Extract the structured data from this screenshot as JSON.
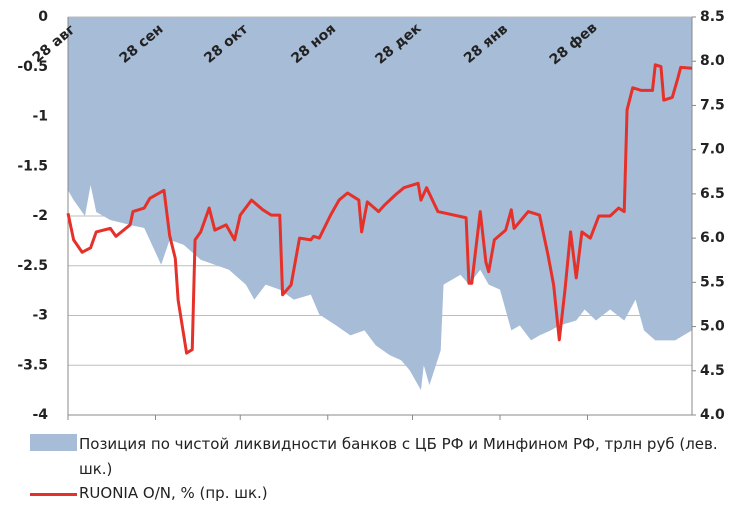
{
  "chart_data": {
    "type": "area-line",
    "xlim": [
      0,
      221
    ],
    "xticks": [
      {
        "value": 0,
        "label": "28 авг"
      },
      {
        "value": 31,
        "label": "28 сен"
      },
      {
        "value": 61,
        "label": "28 окт"
      },
      {
        "value": 92,
        "label": "28 ноя"
      },
      {
        "value": 122,
        "label": "28 дек"
      },
      {
        "value": 153,
        "label": "28 янв"
      },
      {
        "value": 184,
        "label": "28 фев"
      }
    ],
    "ylim": [
      -4,
      0
    ],
    "yticks": [
      0,
      -0.5,
      -1,
      -1.5,
      -2,
      -2.5,
      -3,
      -3.5,
      -4
    ],
    "y2lim": [
      4,
      8.5
    ],
    "y2ticks": [
      {
        "value": 4,
        "label": "4.0"
      },
      {
        "value": 4.5,
        "label": "4.5"
      },
      {
        "value": 5,
        "label": "5.0"
      },
      {
        "value": 5.5,
        "label": "5.5"
      },
      {
        "value": 6,
        "label": "6.0"
      },
      {
        "value": 6.5,
        "label": "6.5"
      },
      {
        "value": 7,
        "label": "7.0"
      },
      {
        "value": 7.5,
        "label": "7.5"
      },
      {
        "value": 8,
        "label": "8.0"
      },
      {
        "value": 8.5,
        "label": "8.5"
      }
    ],
    "grid": true,
    "series": [
      {
        "name": "Позиция по чистой ликвидности банков с ЦБ РФ и Минфином РФ, трлн руб (лев. шк.)",
        "type": "area",
        "color": "#a7bcd6",
        "x": [
          0,
          2,
          6,
          8,
          10,
          15,
          22,
          27,
          33,
          36,
          41,
          47,
          52,
          57,
          63,
          66,
          70,
          75,
          80,
          86,
          89,
          95,
          100,
          105,
          109,
          114,
          118,
          121,
          125,
          126,
          128,
          132,
          133,
          139,
          142,
          146,
          149,
          153,
          157,
          160,
          164,
          167,
          171,
          174,
          180,
          183,
          187,
          192,
          197,
          201,
          204,
          208,
          211,
          215,
          218,
          221
        ],
        "values": [
          -1.74,
          -1.84,
          -2.0,
          -1.69,
          -1.96,
          -2.04,
          -2.09,
          -2.12,
          -2.49,
          -2.24,
          -2.29,
          -2.44,
          -2.49,
          -2.54,
          -2.69,
          -2.84,
          -2.69,
          -2.74,
          -2.84,
          -2.79,
          -2.99,
          -3.1,
          -3.2,
          -3.15,
          -3.3,
          -3.4,
          -3.45,
          -3.55,
          -3.75,
          -3.5,
          -3.7,
          -3.35,
          -2.69,
          -2.59,
          -2.69,
          -2.54,
          -2.69,
          -2.74,
          -3.15,
          -3.1,
          -3.25,
          -3.2,
          -3.15,
          -3.1,
          -3.05,
          -2.94,
          -3.05,
          -2.94,
          -3.05,
          -2.84,
          -3.15,
          -3.25,
          -3.25,
          -3.25,
          -3.2,
          -3.15
        ]
      },
      {
        "name": "RUONIA O/N, % (пр. шк.)",
        "type": "line",
        "axis": "y2",
        "color": "#e5312a",
        "x": [
          0,
          2,
          5,
          8,
          10,
          15,
          17,
          22,
          23,
          27,
          29,
          34,
          36,
          38,
          39,
          42,
          44,
          45,
          47,
          50,
          52,
          56,
          59,
          61,
          65,
          69,
          72,
          75,
          76,
          79,
          82,
          86,
          87,
          89,
          93,
          96,
          99,
          103,
          104,
          106,
          110,
          112,
          116,
          119,
          124,
          125,
          127,
          131,
          141,
          142,
          143,
          146,
          148,
          149,
          151,
          155,
          157,
          158,
          163,
          167,
          170,
          172,
          174,
          176,
          178,
          180,
          182,
          185,
          188,
          192,
          195,
          197,
          198,
          200,
          203,
          207,
          208,
          210,
          211,
          214,
          216,
          217,
          221
        ],
        "values": [
          6.28,
          5.98,
          5.84,
          5.89,
          6.07,
          6.11,
          6.02,
          6.15,
          6.3,
          6.34,
          6.45,
          6.54,
          6.03,
          5.77,
          5.3,
          4.7,
          4.74,
          5.98,
          6.07,
          6.34,
          6.09,
          6.15,
          5.98,
          6.26,
          6.43,
          6.32,
          6.26,
          6.26,
          5.36,
          5.47,
          6.0,
          5.98,
          6.02,
          6.0,
          6.26,
          6.43,
          6.51,
          6.43,
          6.07,
          6.41,
          6.3,
          6.37,
          6.49,
          6.57,
          6.62,
          6.43,
          6.57,
          6.3,
          6.23,
          5.49,
          5.49,
          6.3,
          5.73,
          5.62,
          5.98,
          6.09,
          6.32,
          6.11,
          6.3,
          6.26,
          5.81,
          5.47,
          4.85,
          5.41,
          6.07,
          5.55,
          6.07,
          6.0,
          6.25,
          6.25,
          6.34,
          6.3,
          7.45,
          7.7,
          7.67,
          7.67,
          7.96,
          7.94,
          7.56,
          7.59,
          7.81,
          7.93,
          7.92
        ]
      }
    ]
  }
}
